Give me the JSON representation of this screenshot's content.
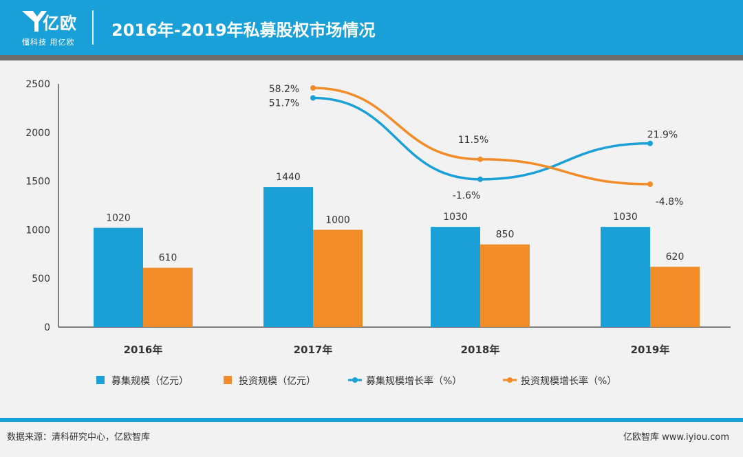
{
  "header": {
    "logo_name": "亿欧",
    "logo_slogan": "懂科技 用亿欧",
    "title": "2016年-2019年私募股权市场情况"
  },
  "colors": {
    "header_bg": "#19a0d8",
    "blue": "#1a9fd6",
    "orange": "#f28c28",
    "axis": "#595959"
  },
  "chart_data": {
    "type": "bar",
    "categories": [
      "2016年",
      "2017年",
      "2018年",
      "2019年"
    ],
    "y_tick_labels": [
      "0",
      "500",
      "1000",
      "1500",
      "2000",
      "2500"
    ],
    "ylim": [
      0,
      2500
    ],
    "series": [
      {
        "name": "募集规模（亿元）",
        "kind": "bar",
        "color": "#1a9fd6",
        "values": [
          1020,
          1440,
          1030,
          1030
        ],
        "labels": [
          "1020",
          "1440",
          "1030",
          "1030"
        ]
      },
      {
        "name": "投资规模（亿元）",
        "kind": "bar",
        "color": "#f28c28",
        "values": [
          610,
          1000,
          850,
          620
        ],
        "labels": [
          "610",
          "1000",
          "850",
          "620"
        ]
      },
      {
        "name": "募集规模增长率（%）",
        "kind": "line",
        "color": "#1a9fd6",
        "values": [
          null,
          51.7,
          -1.6,
          21.9
        ],
        "labels": [
          "",
          "51.7%",
          "-1.6%",
          "21.9%"
        ]
      },
      {
        "name": "投资规模增长率（%）",
        "kind": "line",
        "color": "#f28c28",
        "values": [
          null,
          58.2,
          11.5,
          -4.8
        ],
        "labels": [
          "",
          "58.2%",
          "11.5%",
          "-4.8%"
        ]
      }
    ],
    "grid": false,
    "legend_position": "bottom"
  },
  "footer": {
    "source": "数据来源：清科研究中心，亿欧智库",
    "brand": "亿欧智库 www.iyiou.com"
  }
}
